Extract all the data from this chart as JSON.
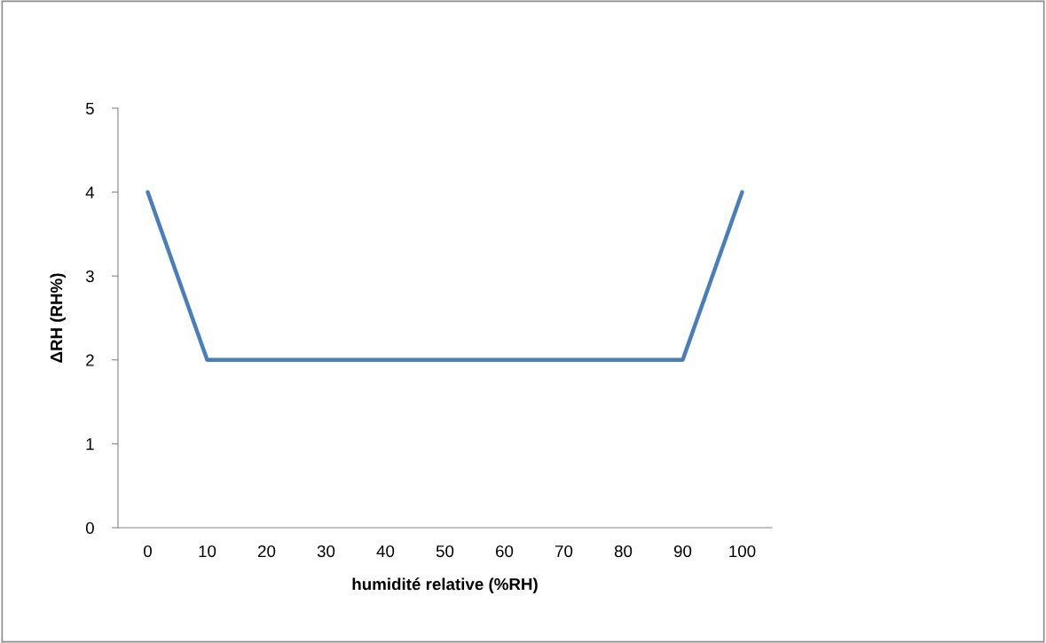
{
  "chart_data": {
    "type": "line",
    "xlabel": "humidité relative (%RH)",
    "ylabel": "ΔRH (RH%)",
    "categories": [
      "0",
      "10",
      "20",
      "30",
      "40",
      "50",
      "60",
      "70",
      "80",
      "90",
      "100"
    ],
    "series": [
      {
        "color": "#4a7ebb",
        "values": [
          4,
          2,
          2,
          2,
          2,
          2,
          2,
          2,
          2,
          2,
          4
        ]
      }
    ],
    "ylim": [
      0,
      5
    ],
    "yticks": [
      0,
      1,
      2,
      3,
      4,
      5
    ],
    "grid": false,
    "marker": "none",
    "line_style": "solid"
  }
}
